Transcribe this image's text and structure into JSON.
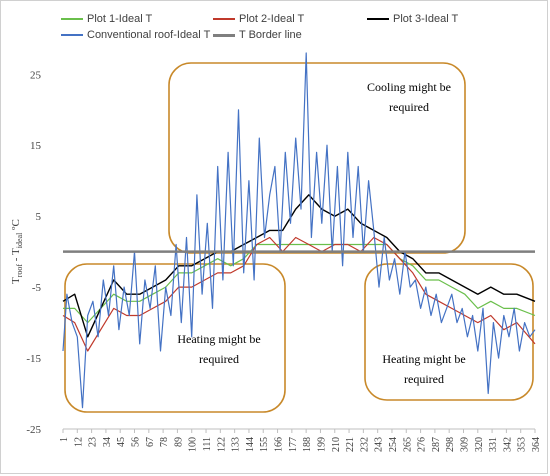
{
  "chart_data": {
    "type": "line",
    "title": "",
    "xlabel": "",
    "ylabel": "T_roof - T_ideal °C",
    "ylabel_parts": {
      "base": "T",
      "sub1": "roof",
      "mid": " - T",
      "sub2": "ideal",
      "unit": " ºC"
    },
    "ylim": [
      -25,
      28
    ],
    "yticks": [
      25,
      15,
      5,
      -5,
      -15,
      -25
    ],
    "xlim": [
      1,
      364
    ],
    "xticks": [
      1,
      12,
      23,
      34,
      45,
      56,
      67,
      78,
      89,
      100,
      111,
      122,
      133,
      144,
      155,
      166,
      177,
      188,
      199,
      210,
      221,
      232,
      243,
      254,
      265,
      276,
      287,
      298,
      309,
      320,
      331,
      342,
      353,
      364
    ],
    "border_line_value": 0,
    "series": [
      {
        "name": "Plot 1-Ideal T",
        "color": "#6abf4b",
        "width": 1.2,
        "x": [
          1,
          10,
          20,
          30,
          40,
          50,
          60,
          70,
          80,
          90,
          100,
          110,
          120,
          130,
          140,
          150,
          160,
          170,
          180,
          190,
          200,
          210,
          220,
          230,
          240,
          250,
          260,
          270,
          280,
          290,
          300,
          310,
          320,
          330,
          340,
          350,
          364
        ],
        "values": [
          -8,
          -8,
          -10,
          -8,
          -6,
          -7,
          -7,
          -6,
          -5,
          -3,
          -3,
          -2,
          -1,
          -2,
          -1,
          1,
          1,
          1,
          1,
          1,
          1,
          1,
          1,
          1,
          1,
          1,
          -1,
          -2,
          -4,
          -4,
          -5,
          -6,
          -8,
          -7,
          -8,
          -8,
          -9
        ]
      },
      {
        "name": "Plot 2-Ideal T",
        "color": "#c0392b",
        "width": 1.2,
        "x": [
          1,
          10,
          20,
          30,
          40,
          50,
          60,
          70,
          80,
          90,
          100,
          110,
          120,
          130,
          140,
          150,
          160,
          170,
          180,
          190,
          200,
          210,
          220,
          230,
          240,
          250,
          260,
          270,
          280,
          290,
          300,
          310,
          320,
          330,
          340,
          350,
          364
        ],
        "values": [
          -9,
          -10,
          -14,
          -11,
          -8,
          -9,
          -9,
          -8,
          -7,
          -5,
          -5,
          -4,
          -3,
          -3,
          -2,
          1,
          2,
          0,
          2,
          1,
          0,
          1,
          1,
          0,
          2,
          1,
          -1,
          -3,
          -6,
          -7,
          -8,
          -9,
          -10,
          -9,
          -11,
          -10,
          -13
        ]
      },
      {
        "name": "Plot 3-Ideal T",
        "color": "#000000",
        "width": 1.4,
        "x": [
          1,
          10,
          20,
          30,
          40,
          50,
          60,
          70,
          80,
          90,
          100,
          110,
          120,
          130,
          140,
          150,
          160,
          170,
          180,
          190,
          200,
          210,
          220,
          230,
          240,
          250,
          260,
          270,
          280,
          290,
          300,
          310,
          320,
          330,
          340,
          350,
          364
        ],
        "values": [
          -7,
          -6,
          -12,
          -8,
          -4,
          -6,
          -6,
          -5,
          -4,
          -2,
          -2,
          -1,
          0,
          0,
          1,
          2,
          3,
          3,
          6,
          8,
          6,
          5,
          6,
          4,
          3,
          2,
          0,
          -1,
          -3,
          -3,
          -4,
          -5,
          -6,
          -5,
          -6,
          -6,
          -7
        ]
      },
      {
        "name": "Conventional roof-Ideal T",
        "color": "#4472c4",
        "width": 1.2,
        "x": [
          1,
          4,
          8,
          12,
          16,
          20,
          24,
          28,
          32,
          36,
          40,
          44,
          48,
          52,
          56,
          60,
          64,
          68,
          72,
          76,
          80,
          84,
          88,
          92,
          96,
          100,
          104,
          108,
          112,
          116,
          120,
          124,
          128,
          132,
          136,
          140,
          144,
          148,
          152,
          156,
          160,
          164,
          168,
          172,
          176,
          180,
          184,
          188,
          192,
          196,
          200,
          204,
          208,
          212,
          216,
          220,
          224,
          228,
          232,
          236,
          240,
          244,
          248,
          252,
          256,
          260,
          264,
          268,
          272,
          276,
          280,
          284,
          288,
          292,
          296,
          300,
          304,
          308,
          312,
          316,
          320,
          324,
          328,
          332,
          336,
          340,
          344,
          348,
          352,
          356,
          360,
          364
        ],
        "values": [
          -14,
          -6,
          -10,
          -12,
          -22,
          -9,
          -7,
          -12,
          -4,
          -9,
          -2,
          -11,
          -5,
          -9,
          0,
          -13,
          -4,
          -8,
          -2,
          -14,
          -5,
          -9,
          1,
          -10,
          2,
          -12,
          8,
          -6,
          4,
          -8,
          12,
          -4,
          14,
          -2,
          20,
          -3,
          10,
          -4,
          16,
          2,
          8,
          12,
          0,
          14,
          4,
          16,
          6,
          28,
          2,
          14,
          4,
          15,
          0,
          12,
          -2,
          14,
          2,
          12,
          0,
          10,
          3,
          -5,
          2,
          -4,
          -1,
          -6,
          0,
          -5,
          -4,
          -8,
          -5,
          -9,
          -6,
          -10,
          -8,
          -6,
          -10,
          -8,
          -12,
          -9,
          -14,
          -8,
          -20,
          -10,
          -15,
          -9,
          -12,
          -8,
          -14,
          -10,
          -12,
          -11
        ]
      },
      {
        "name": "T Border line",
        "color": "#7f7f7f",
        "width": 2.5,
        "x": [
          1,
          364
        ],
        "values": [
          0,
          0
        ]
      }
    ],
    "annotations": [
      {
        "text_lines": [
          "Cooling might be",
          "required"
        ]
      },
      {
        "text_lines": [
          "Heating might be",
          "required"
        ]
      },
      {
        "text_lines": [
          "Heating might be",
          "required"
        ]
      }
    ],
    "annotation_box_color": "#c8892a"
  }
}
